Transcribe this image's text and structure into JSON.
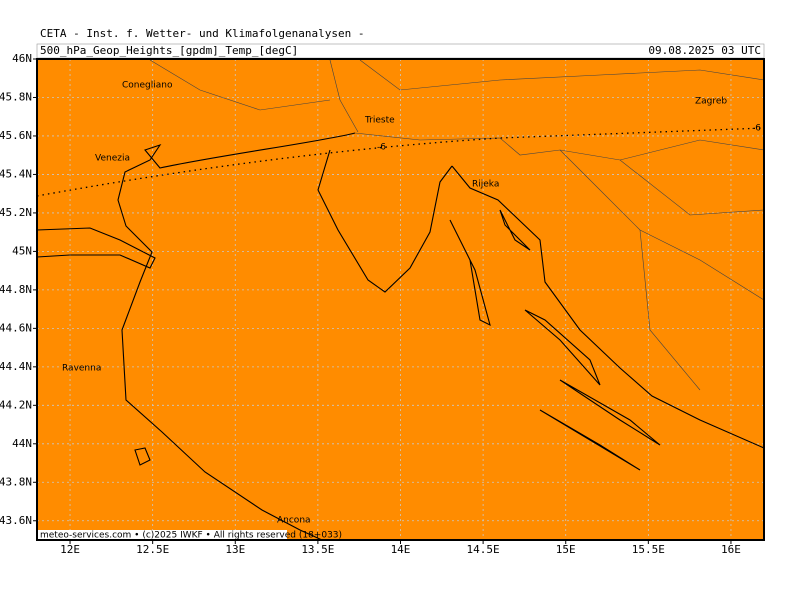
{
  "header": {
    "title": "CETA - Inst. f. Wetter- und Klimafolgenanalysen -",
    "product": "500_hPa_Geop_Heights_[gpdm]_Temp_[degC]",
    "valid": "09.08.2025 03 UTC"
  },
  "map": {
    "lonlim": [
      11.8,
      16.2
    ],
    "latlim": [
      43.5,
      46
    ],
    "lon_ticks": [
      {
        "value": 12,
        "label": "12E"
      },
      {
        "value": 12.5,
        "label": "12.5E"
      },
      {
        "value": 13,
        "label": "13E"
      },
      {
        "value": 13.5,
        "label": "13.5E"
      },
      {
        "value": 14,
        "label": "14E"
      },
      {
        "value": 14.5,
        "label": "14.5E"
      },
      {
        "value": 15,
        "label": "15E"
      },
      {
        "value": 15.5,
        "label": "15.5E"
      },
      {
        "value": 16,
        "label": "16E"
      }
    ],
    "lat_ticks": [
      {
        "value": 43.6,
        "label": "43.6N"
      },
      {
        "value": 43.8,
        "label": "43.8N"
      },
      {
        "value": 44,
        "label": "44N"
      },
      {
        "value": 44.2,
        "label": "44.2N"
      },
      {
        "value": 44.4,
        "label": "44.4N"
      },
      {
        "value": 44.6,
        "label": "44.6N"
      },
      {
        "value": 44.8,
        "label": "44.8N"
      },
      {
        "value": 45,
        "label": "45N"
      },
      {
        "value": 45.2,
        "label": "45.2N"
      },
      {
        "value": 45.4,
        "label": "45.4N"
      },
      {
        "value": 45.6,
        "label": "45.6N"
      },
      {
        "value": 45.8,
        "label": "45.8N"
      },
      {
        "value": 46,
        "label": "46N"
      }
    ],
    "places": [
      "Conegliano",
      "Venezia",
      "Trieste",
      "Zagreb",
      "Rijeka",
      "Ravenna",
      "Ancona"
    ],
    "contour_labels": [
      "-6",
      "-6"
    ],
    "footer": "meteo-services.com • (c)2025 IWKF • All rights reserved (18+033)"
  }
}
